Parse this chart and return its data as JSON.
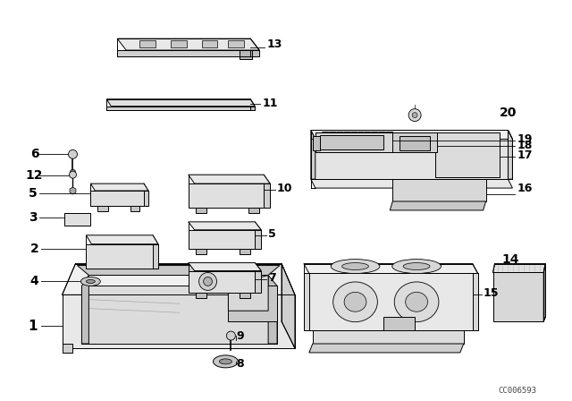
{
  "bg_color": "#ffffff",
  "fig_width": 6.4,
  "fig_height": 4.48,
  "dpi": 100,
  "watermark": "CC006593",
  "lc": "#000000",
  "lw": 0.7,
  "fill_top": "#f0f0f0",
  "fill_side": "#d8d8d8",
  "fill_front": "#e8e8e8",
  "fill_dark": "#b8b8b8"
}
